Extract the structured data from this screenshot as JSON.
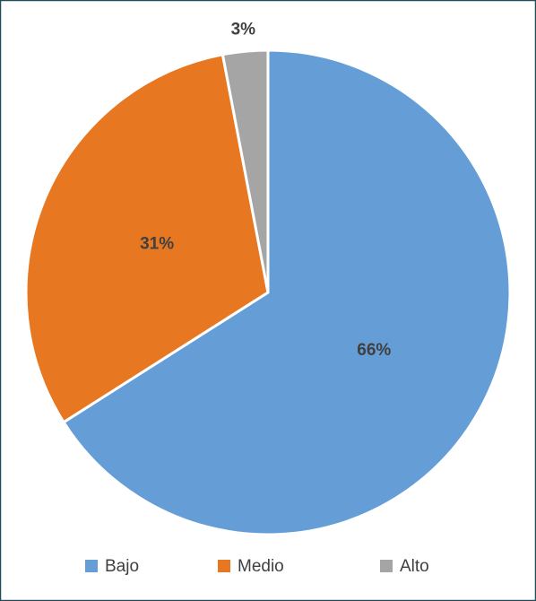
{
  "chart_data": {
    "type": "pie",
    "categories": [
      "Bajo",
      "Medio",
      "Alto"
    ],
    "values": [
      66,
      31,
      3
    ],
    "value_labels": [
      "66%",
      "31%",
      "3%"
    ],
    "colors": [
      "#659ed6",
      "#e87722",
      "#a5a5a5"
    ],
    "legend": "bottom"
  }
}
